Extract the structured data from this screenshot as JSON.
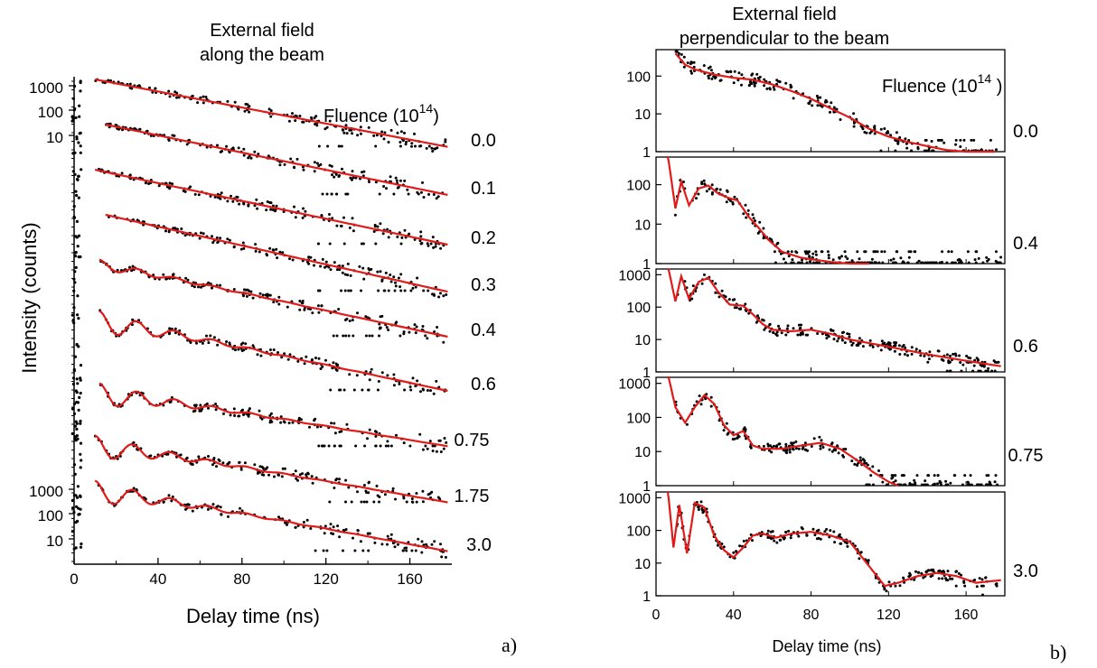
{
  "panel_labels": {
    "a": "a)",
    "b": "b)"
  },
  "colors": {
    "data": "#000000",
    "fit": "#e11a1a",
    "axes": "#000000"
  },
  "chart_data": [
    {
      "type": "line",
      "panel": "a",
      "title_lines": [
        "External field",
        "along the beam"
      ],
      "xlabel": "Delay time  (ns)",
      "ylabel": "Intensity (counts)",
      "xlim": [
        0,
        180
      ],
      "x_ticks": [
        0,
        40,
        80,
        120,
        160
      ],
      "x_tick_labels": [
        "0",
        "40",
        "80",
        "120",
        "160"
      ],
      "y_scale": "log",
      "y_ticks_top_labels": [
        "1000",
        "100",
        "10"
      ],
      "y_ticks_bottom_labels": [
        "1000",
        "100",
        "10"
      ],
      "legend_title": "Fluence (10",
      "legend_title_sup": "14",
      "legend_title_close": ")",
      "curve_style": "black dots = measured counts, red line = fit",
      "fluences": [
        "0.0",
        "0.1",
        "0.2",
        "0.3",
        "0.4",
        "0.6",
        "0.75",
        "1.75",
        "3.0"
      ],
      "series": [
        {
          "name": "0.0",
          "start_ns": 10,
          "peak_counts": 1500,
          "quantum_beats": false
        },
        {
          "name": "0.1",
          "start_ns": 15,
          "peak_counts": 1000,
          "quantum_beats": false
        },
        {
          "name": "0.2",
          "start_ns": 10,
          "peak_counts": 1500,
          "quantum_beats": false
        },
        {
          "name": "0.3",
          "start_ns": 15,
          "peak_counts": 1000,
          "quantum_beats": false
        },
        {
          "name": "0.4",
          "start_ns": 12,
          "peak_counts": 1000,
          "quantum_beats": "weak"
        },
        {
          "name": "0.6",
          "start_ns": 12,
          "peak_counts": 1500,
          "quantum_beats": true
        },
        {
          "name": "0.75",
          "start_ns": 12,
          "peak_counts": 1500,
          "quantum_beats": true
        },
        {
          "name": "1.75",
          "start_ns": 10,
          "peak_counts": 1500,
          "quantum_beats": true
        },
        {
          "name": "3.0",
          "start_ns": 10,
          "peak_counts": 1500,
          "quantum_beats": true
        }
      ]
    },
    {
      "type": "line",
      "panel": "b",
      "title_lines": [
        "External field",
        "perpendicular to the beam"
      ],
      "xlabel": "Delay time (ns)",
      "xlim": [
        0,
        180
      ],
      "x_ticks": [
        0,
        40,
        80,
        120,
        160
      ],
      "x_tick_labels": [
        "0",
        "40",
        "80",
        "120",
        "160"
      ],
      "y_scale": "log",
      "legend_title": "Fluence (10",
      "legend_title_sup": "14",
      "legend_title_close": " )",
      "subplots": [
        {
          "fluence": "0.0",
          "ylim": [
            1,
            500
          ],
          "y_tick_labels": [
            "100",
            "10",
            "1"
          ],
          "points": [
            [
              10,
              400
            ],
            [
              15,
              200
            ],
            [
              20,
              150
            ],
            [
              30,
              110
            ],
            [
              40,
              90
            ],
            [
              50,
              80
            ],
            [
              60,
              60
            ],
            [
              70,
              40
            ],
            [
              80,
              25
            ],
            [
              90,
              14
            ],
            [
              100,
              8
            ],
            [
              110,
              4
            ],
            [
              120,
              2.5
            ],
            [
              130,
              1.8
            ],
            [
              140,
              1.4
            ],
            [
              150,
              1.1
            ],
            [
              160,
              1.0
            ],
            [
              175,
              0.8
            ]
          ]
        },
        {
          "fluence": "0.4",
          "ylim": [
            1,
            500
          ],
          "y_tick_labels": [
            "100",
            "10",
            "1"
          ],
          "points": [
            [
              6,
              600
            ],
            [
              10,
              25
            ],
            [
              13,
              120
            ],
            [
              17,
              30
            ],
            [
              22,
              80
            ],
            [
              27,
              95
            ],
            [
              32,
              60
            ],
            [
              38,
              45
            ],
            [
              42,
              40
            ],
            [
              48,
              15
            ],
            [
              53,
              8
            ],
            [
              58,
              4
            ],
            [
              65,
              2
            ],
            [
              75,
              1.4
            ],
            [
              90,
              1.1
            ],
            [
              100,
              1.0
            ],
            [
              110,
              1.0
            ]
          ]
        },
        {
          "fluence": "0.6",
          "ylim": [
            1,
            1500
          ],
          "y_tick_labels": [
            "1000",
            "100",
            "10",
            "1"
          ],
          "points": [
            [
              6,
              2000
            ],
            [
              10,
              150
            ],
            [
              13,
              900
            ],
            [
              17,
              180
            ],
            [
              22,
              600
            ],
            [
              27,
              800
            ],
            [
              32,
              300
            ],
            [
              38,
              120
            ],
            [
              45,
              110
            ],
            [
              50,
              60
            ],
            [
              55,
              30
            ],
            [
              60,
              20
            ],
            [
              70,
              18
            ],
            [
              80,
              20
            ],
            [
              90,
              15
            ],
            [
              100,
              10
            ],
            [
              120,
              6
            ],
            [
              140,
              3.5
            ],
            [
              160,
              2.2
            ],
            [
              178,
              1.5
            ]
          ]
        },
        {
          "fluence": "0.75",
          "ylim": [
            1,
            1500
          ],
          "y_tick_labels": [
            "1000",
            "100",
            "10",
            "1"
          ],
          "points": [
            [
              6,
              2000
            ],
            [
              10,
              200
            ],
            [
              15,
              70
            ],
            [
              20,
              200
            ],
            [
              25,
              450
            ],
            [
              30,
              250
            ],
            [
              35,
              60
            ],
            [
              40,
              30
            ],
            [
              45,
              40
            ],
            [
              50,
              15
            ],
            [
              55,
              12
            ],
            [
              65,
              12
            ],
            [
              75,
              15
            ],
            [
              85,
              18
            ],
            [
              95,
              12
            ],
            [
              105,
              5
            ],
            [
              112,
              2.5
            ],
            [
              120,
              1.3
            ],
            [
              125,
              1.0
            ]
          ]
        },
        {
          "fluence": "3.0",
          "ylim": [
            1,
            1500
          ],
          "y_tick_labels": [
            "1000",
            "100",
            "10",
            "1"
          ],
          "points": [
            [
              6,
              2000
            ],
            [
              9,
              30
            ],
            [
              12,
              600
            ],
            [
              16,
              20
            ],
            [
              20,
              700
            ],
            [
              25,
              500
            ],
            [
              30,
              70
            ],
            [
              35,
              25
            ],
            [
              40,
              15
            ],
            [
              45,
              30
            ],
            [
              50,
              70
            ],
            [
              55,
              80
            ],
            [
              62,
              60
            ],
            [
              70,
              80
            ],
            [
              80,
              90
            ],
            [
              90,
              70
            ],
            [
              100,
              45
            ],
            [
              110,
              8
            ],
            [
              118,
              2
            ],
            [
              125,
              2.5
            ],
            [
              135,
              4
            ],
            [
              145,
              5
            ],
            [
              155,
              4
            ],
            [
              165,
              2.5
            ],
            [
              178,
              3
            ]
          ]
        }
      ]
    }
  ]
}
